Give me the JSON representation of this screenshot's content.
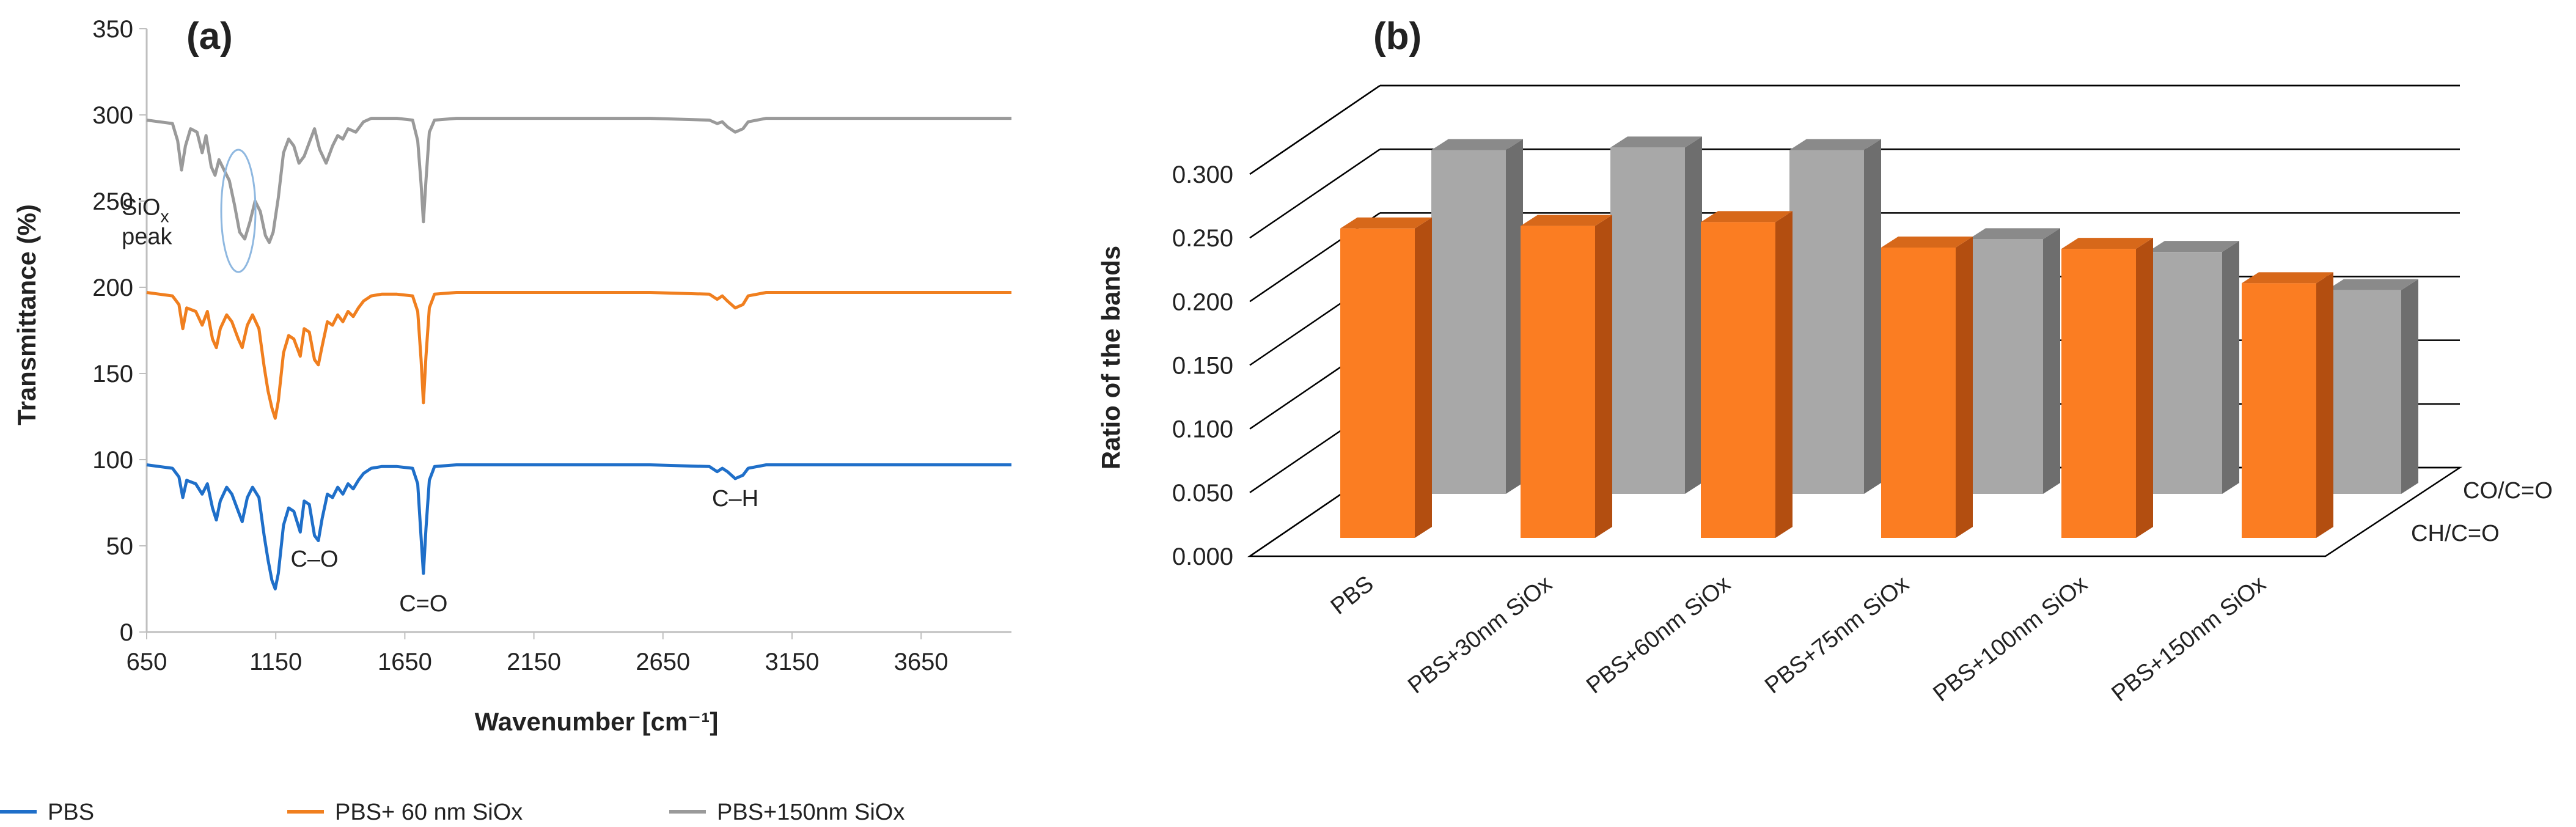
{
  "chart_data": [
    {
      "type": "line",
      "panel_label": "(a)",
      "xlabel": "Wavenumber [cm⁻¹]",
      "ylabel": "Transmittance (%)",
      "xlim": [
        650,
        4000
      ],
      "ylim": [
        0,
        350
      ],
      "x_ticks": [
        "650",
        "1150",
        "1650",
        "2150",
        "2650",
        "3150",
        "3650"
      ],
      "y_ticks": [
        "0",
        "50",
        "100",
        "150",
        "200",
        "250",
        "300",
        "350"
      ],
      "legend_position": "bottom",
      "series": [
        {
          "name": "PBS",
          "color": "#1f6fc9",
          "points": [
            [
              650,
              97
            ],
            [
              700,
              96
            ],
            [
              750,
              95
            ],
            [
              775,
              90
            ],
            [
              790,
              78
            ],
            [
              805,
              88
            ],
            [
              840,
              86
            ],
            [
              865,
              80
            ],
            [
              885,
              86
            ],
            [
              905,
              72
            ],
            [
              920,
              65
            ],
            [
              935,
              76
            ],
            [
              960,
              84
            ],
            [
              980,
              80
            ],
            [
              1005,
              70
            ],
            [
              1020,
              64
            ],
            [
              1040,
              78
            ],
            [
              1060,
              84
            ],
            [
              1085,
              78
            ],
            [
              1105,
              56
            ],
            [
              1120,
              42
            ],
            [
              1135,
              30
            ],
            [
              1148,
              25
            ],
            [
              1160,
              34
            ],
            [
              1180,
              62
            ],
            [
              1200,
              72
            ],
            [
              1220,
              70
            ],
            [
              1245,
              58
            ],
            [
              1260,
              76
            ],
            [
              1280,
              74
            ],
            [
              1300,
              56
            ],
            [
              1315,
              53
            ],
            [
              1330,
              66
            ],
            [
              1350,
              80
            ],
            [
              1370,
              78
            ],
            [
              1390,
              84
            ],
            [
              1410,
              80
            ],
            [
              1430,
              86
            ],
            [
              1450,
              83
            ],
            [
              1470,
              88
            ],
            [
              1490,
              92
            ],
            [
              1520,
              95
            ],
            [
              1560,
              96
            ],
            [
              1620,
              96
            ],
            [
              1680,
              95
            ],
            [
              1700,
              86
            ],
            [
              1713,
              55
            ],
            [
              1722,
              34
            ],
            [
              1732,
              60
            ],
            [
              1745,
              88
            ],
            [
              1765,
              96
            ],
            [
              1850,
              97
            ],
            [
              2000,
              97
            ],
            [
              2300,
              97
            ],
            [
              2600,
              97
            ],
            [
              2830,
              96
            ],
            [
              2860,
              93
            ],
            [
              2880,
              95
            ],
            [
              2900,
              93
            ],
            [
              2930,
              89
            ],
            [
              2960,
              91
            ],
            [
              2980,
              95
            ],
            [
              3050,
              97
            ],
            [
              3600,
              97
            ],
            [
              4000,
              97
            ]
          ]
        },
        {
          "name": "PBS+ 60 nm SiOx",
          "color": "#f07f1f",
          "points": [
            [
              650,
              197
            ],
            [
              700,
              196
            ],
            [
              750,
              195
            ],
            [
              775,
              190
            ],
            [
              790,
              176
            ],
            [
              805,
              188
            ],
            [
              840,
              186
            ],
            [
              865,
              178
            ],
            [
              885,
              186
            ],
            [
              905,
              170
            ],
            [
              920,
              165
            ],
            [
              935,
              176
            ],
            [
              960,
              184
            ],
            [
              980,
              180
            ],
            [
              1005,
              170
            ],
            [
              1020,
              165
            ],
            [
              1040,
              178
            ],
            [
              1060,
              184
            ],
            [
              1085,
              176
            ],
            [
              1105,
              154
            ],
            [
              1120,
              140
            ],
            [
              1135,
              130
            ],
            [
              1148,
              124
            ],
            [
              1160,
              134
            ],
            [
              1180,
              162
            ],
            [
              1200,
              172
            ],
            [
              1220,
              170
            ],
            [
              1245,
              160
            ],
            [
              1260,
              176
            ],
            [
              1280,
              174
            ],
            [
              1300,
              158
            ],
            [
              1315,
              155
            ],
            [
              1330,
              166
            ],
            [
              1350,
              180
            ],
            [
              1370,
              178
            ],
            [
              1390,
              184
            ],
            [
              1410,
              180
            ],
            [
              1430,
              186
            ],
            [
              1450,
              183
            ],
            [
              1470,
              188
            ],
            [
              1490,
              192
            ],
            [
              1520,
              195
            ],
            [
              1560,
              196
            ],
            [
              1620,
              196
            ],
            [
              1680,
              195
            ],
            [
              1700,
              186
            ],
            [
              1713,
              158
            ],
            [
              1722,
              133
            ],
            [
              1732,
              160
            ],
            [
              1745,
              188
            ],
            [
              1765,
              196
            ],
            [
              1850,
              197
            ],
            [
              2000,
              197
            ],
            [
              2300,
              197
            ],
            [
              2600,
              197
            ],
            [
              2830,
              196
            ],
            [
              2860,
              193
            ],
            [
              2880,
              195
            ],
            [
              2900,
              192
            ],
            [
              2930,
              188
            ],
            [
              2960,
              190
            ],
            [
              2980,
              195
            ],
            [
              3050,
              197
            ],
            [
              3600,
              197
            ],
            [
              4000,
              197
            ]
          ]
        },
        {
          "name": "PBS+150nm SiOx",
          "color": "#9a9a9a",
          "points": [
            [
              650,
              297
            ],
            [
              700,
              296
            ],
            [
              750,
              295
            ],
            [
              770,
              285
            ],
            [
              785,
              268
            ],
            [
              800,
              282
            ],
            [
              820,
              292
            ],
            [
              845,
              290
            ],
            [
              865,
              278
            ],
            [
              880,
              288
            ],
            [
              900,
              270
            ],
            [
              915,
              265
            ],
            [
              930,
              274
            ],
            [
              950,
              268
            ],
            [
              970,
              262
            ],
            [
              990,
              248
            ],
            [
              1010,
              232
            ],
            [
              1030,
              228
            ],
            [
              1050,
              238
            ],
            [
              1070,
              250
            ],
            [
              1090,
              244
            ],
            [
              1110,
              230
            ],
            [
              1125,
              226
            ],
            [
              1140,
              232
            ],
            [
              1160,
              252
            ],
            [
              1180,
              278
            ],
            [
              1200,
              286
            ],
            [
              1220,
              282
            ],
            [
              1240,
              272
            ],
            [
              1260,
              276
            ],
            [
              1280,
              284
            ],
            [
              1300,
              292
            ],
            [
              1320,
              280
            ],
            [
              1345,
              272
            ],
            [
              1370,
              282
            ],
            [
              1390,
              288
            ],
            [
              1410,
              286
            ],
            [
              1430,
              292
            ],
            [
              1460,
              290
            ],
            [
              1490,
              296
            ],
            [
              1520,
              298
            ],
            [
              1560,
              298
            ],
            [
              1620,
              298
            ],
            [
              1680,
              297
            ],
            [
              1700,
              285
            ],
            [
              1713,
              260
            ],
            [
              1722,
              238
            ],
            [
              1732,
              262
            ],
            [
              1745,
              290
            ],
            [
              1765,
              297
            ],
            [
              1850,
              298
            ],
            [
              2000,
              298
            ],
            [
              2300,
              298
            ],
            [
              2600,
              298
            ],
            [
              2830,
              297
            ],
            [
              2860,
              295
            ],
            [
              2880,
              296
            ],
            [
              2900,
              293
            ],
            [
              2930,
              290
            ],
            [
              2960,
              292
            ],
            [
              2980,
              296
            ],
            [
              3050,
              298
            ],
            [
              3600,
              298
            ],
            [
              4000,
              298
            ]
          ]
        }
      ],
      "annotations": [
        {
          "text": "C–O",
          "x": 1300,
          "y": 38
        },
        {
          "text": "C=O",
          "x": 1722,
          "y": 12
        },
        {
          "text": "C–H",
          "x": 2930,
          "y": 73
        },
        {
          "text": "SiO",
          "subscript": "x",
          "line2": "peak",
          "x": 790,
          "y": 242
        }
      ]
    },
    {
      "type": "bar",
      "panel_label": "(b)",
      "ylabel": "Ratio of the bands",
      "ylim": [
        0,
        0.3
      ],
      "y_ticks": [
        "0.000",
        "0.050",
        "0.100",
        "0.150",
        "0.200",
        "0.250",
        "0.300"
      ],
      "categories": [
        "PBS",
        "PBS+30nm SiOx",
        "PBS+60nm SiOx",
        "PBS+75nm SiOx",
        "PBS+100nm SiOx",
        "PBS+150nm SiOx"
      ],
      "series": [
        {
          "name": "CH/C=O",
          "color": "#fb7d22",
          "values": [
            0.243,
            0.245,
            0.248,
            0.228,
            0.227,
            0.2
          ]
        },
        {
          "name": "CO/C=O",
          "color": "#a8a8a8",
          "values": [
            0.27,
            0.272,
            0.27,
            0.2,
            0.19,
            0.16
          ]
        }
      ]
    }
  ]
}
